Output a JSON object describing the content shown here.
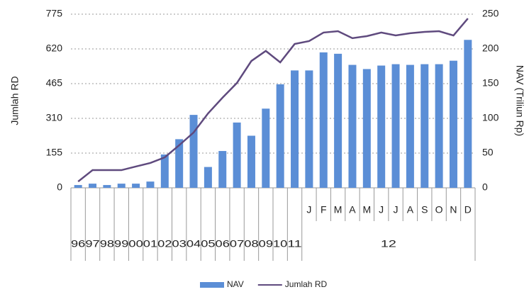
{
  "chart_data": {
    "type": "bar-line",
    "y_label": "Jumlah RD",
    "y2_label": "NAV (Triliun Rp)",
    "category_groups": [
      {
        "label": "96",
        "categories": [
          null
        ]
      },
      {
        "label": "97",
        "categories": [
          null
        ]
      },
      {
        "label": "98",
        "categories": [
          null
        ]
      },
      {
        "label": "99",
        "categories": [
          null
        ]
      },
      {
        "label": "00",
        "categories": [
          null
        ]
      },
      {
        "label": "01",
        "categories": [
          null
        ]
      },
      {
        "label": "02",
        "categories": [
          null
        ]
      },
      {
        "label": "03",
        "categories": [
          null
        ]
      },
      {
        "label": "04",
        "categories": [
          null
        ]
      },
      {
        "label": "05",
        "categories": [
          null
        ]
      },
      {
        "label": "06",
        "categories": [
          null
        ]
      },
      {
        "label": "07",
        "categories": [
          null
        ]
      },
      {
        "label": "08",
        "categories": [
          null
        ]
      },
      {
        "label": "09",
        "categories": [
          null
        ]
      },
      {
        "label": "10",
        "categories": [
          null
        ]
      },
      {
        "label": "11",
        "categories": [
          null
        ]
      },
      {
        "label": "12",
        "categories": [
          "J",
          "F",
          "M",
          "A",
          "M",
          "J",
          "J",
          "A",
          "S",
          "O",
          "N",
          "D"
        ]
      }
    ],
    "series": [
      {
        "name": "NAV",
        "type": "bar",
        "axis": "y2",
        "color": "#5b8ed6",
        "values": [
          4,
          6,
          4,
          6,
          6,
          9,
          48,
          70,
          105,
          30,
          53,
          94,
          75,
          114,
          149,
          169,
          169,
          195,
          193,
          177,
          171,
          176,
          178,
          177,
          178,
          178,
          183,
          213
        ]
      },
      {
        "name": "Jumlah RD",
        "type": "line",
        "axis": "y",
        "color": "#5f4a7e",
        "values": [
          28,
          79,
          79,
          79,
          95,
          111,
          136,
          190,
          247,
          332,
          402,
          468,
          566,
          611,
          560,
          642,
          655,
          693,
          699,
          668,
          677,
          693,
          680,
          690,
          696,
          699,
          680,
          756
        ]
      }
    ],
    "ylim": [
      0,
      775
    ],
    "yticks": [
      0,
      155,
      310,
      465,
      620,
      775
    ],
    "y2lim": [
      0,
      250
    ],
    "y2ticks": [
      0,
      50,
      100,
      150,
      200,
      250
    ],
    "grid": true,
    "legend": "bottom"
  }
}
